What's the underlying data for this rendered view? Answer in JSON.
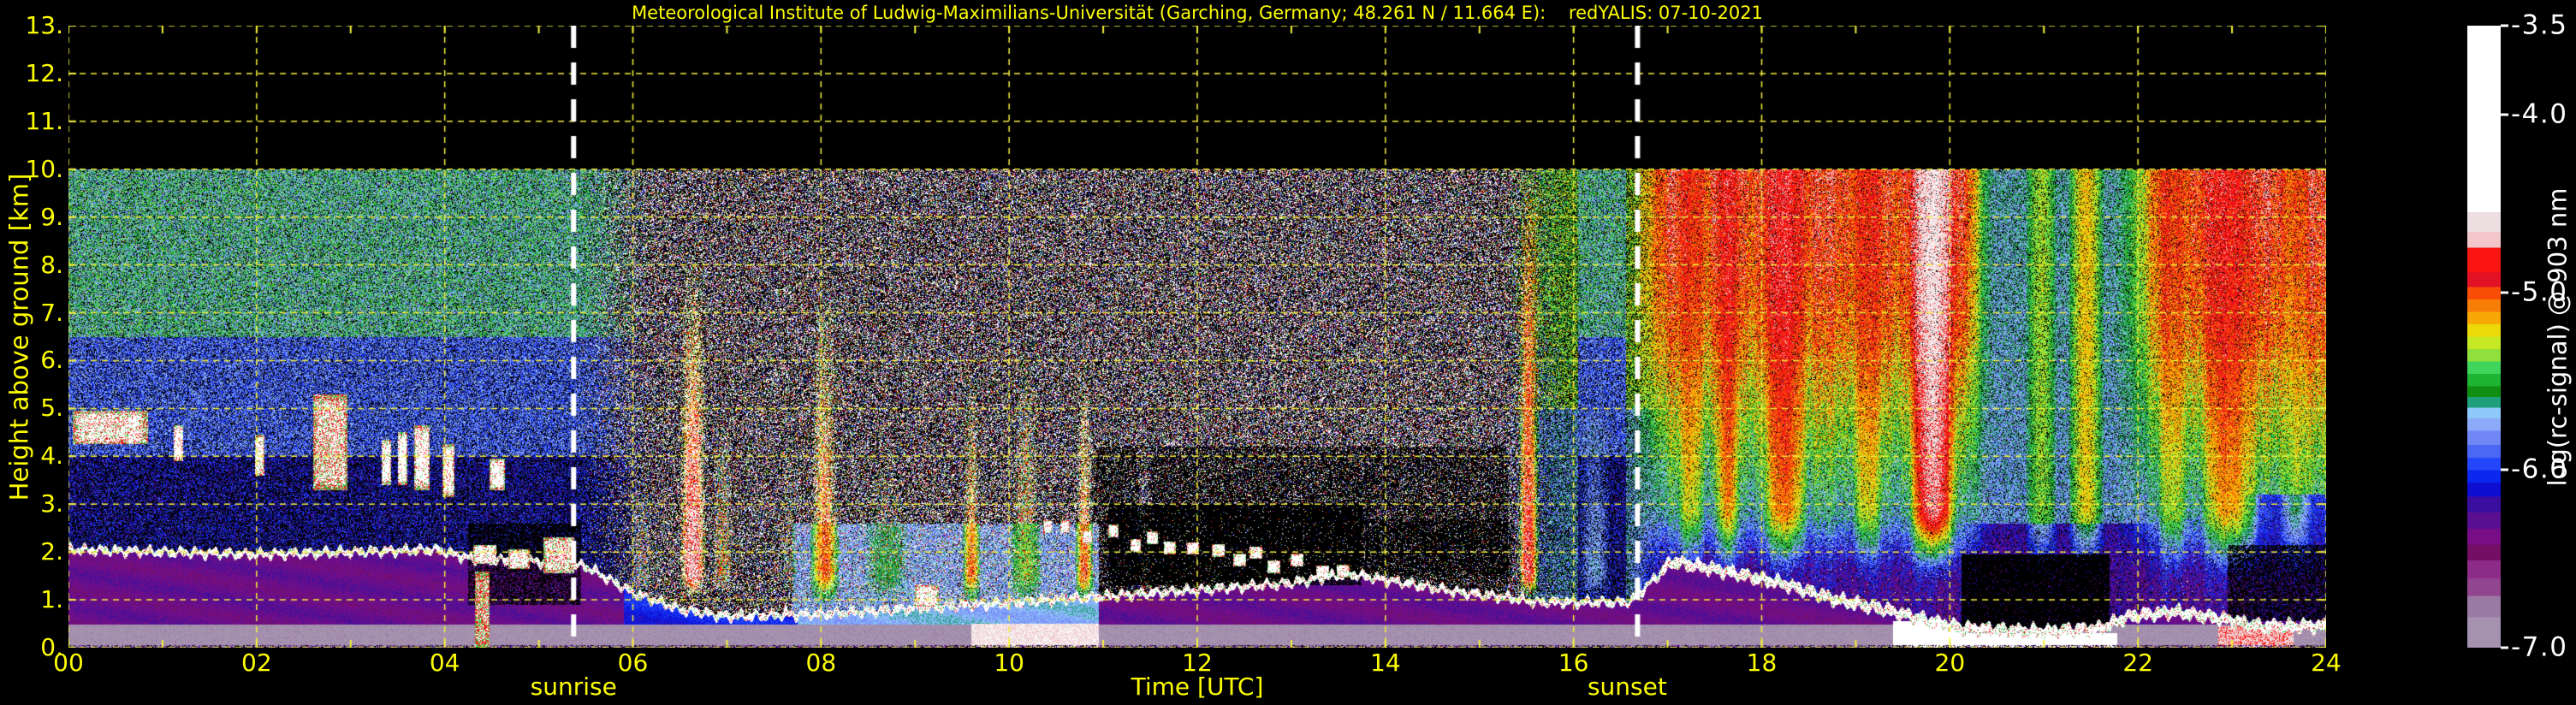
{
  "title": "Meteorological Institute of Ludwig-Maximilians-Universität (Garching, Germany; 48.261 N / 11.664 E):    redYALIS: 07-10-2021",
  "colors": {
    "background": "#000000",
    "axis_text": "#fdfd02",
    "grid": "#f5f23a",
    "annotation_line": "#ffffff",
    "colorbar_text": "#ffffff"
  },
  "chart_data": {
    "type": "heatmap",
    "title": "Meteorological Institute of Ludwig-Maximilians-Universität (Garching, Germany; 48.261 N / 11.664 E):    redYALIS: 07-10-2021",
    "xlabel": "Time [UTC]",
    "ylabel": "Height above ground [km]",
    "x_range": [
      0,
      24
    ],
    "y_range": [
      0,
      13
    ],
    "data_height_range_km": [
      0,
      10
    ],
    "grid": "dashed yellow, x every 2 h, y every 1 km",
    "x_ticks": [
      {
        "label": "00",
        "value": 0
      },
      {
        "label": "02",
        "value": 2
      },
      {
        "label": "04",
        "value": 4
      },
      {
        "label": "06",
        "value": 6
      },
      {
        "label": "08",
        "value": 8
      },
      {
        "label": "10",
        "value": 10
      },
      {
        "label": "12",
        "value": 12
      },
      {
        "label": "14",
        "value": 14
      },
      {
        "label": "16",
        "value": 16
      },
      {
        "label": "18",
        "value": 18
      },
      {
        "label": "20",
        "value": 20
      },
      {
        "label": "22",
        "value": 22
      },
      {
        "label": "24",
        "value": 24
      }
    ],
    "y_ticks": [
      {
        "label": "0.",
        "value": 0
      },
      {
        "label": "1.",
        "value": 1
      },
      {
        "label": "2.",
        "value": 2
      },
      {
        "label": "3.",
        "value": 3
      },
      {
        "label": "4.",
        "value": 4
      },
      {
        "label": "5.",
        "value": 5
      },
      {
        "label": "6.",
        "value": 6
      },
      {
        "label": "7.",
        "value": 7
      },
      {
        "label": "8.",
        "value": 8
      },
      {
        "label": "9.",
        "value": 9
      },
      {
        "label": "10.",
        "value": 10
      },
      {
        "label": "11.",
        "value": 11
      },
      {
        "label": "12.",
        "value": 12
      },
      {
        "label": "13.",
        "value": 13
      }
    ],
    "annotations": [
      {
        "label": "sunrise",
        "time_utc": 5.37
      },
      {
        "label": "sunset",
        "time_utc": 16.68
      }
    ],
    "colorbar": {
      "label": "log(rc-signal) @ 903 nm",
      "range": [
        -7.0,
        -3.5
      ],
      "ticks": [
        {
          "label": "-3.5",
          "value": -3.5
        },
        {
          "label": "-4.0",
          "value": -4.0
        },
        {
          "label": "-5.0",
          "value": -5.0
        },
        {
          "label": "-6.0",
          "value": -6.0
        },
        {
          "label": "-7.0",
          "value": -7.0
        }
      ]
    },
    "palette": [
      [
        -4.55,
        "#ffffff"
      ],
      [
        -4.66,
        "#eddfe1"
      ],
      [
        -4.75,
        "#f3c6ca"
      ],
      [
        -4.89,
        "#fb1410"
      ],
      [
        -4.97,
        "#e01223"
      ],
      [
        -5.04,
        "#f84d06"
      ],
      [
        -5.11,
        "#f87d06"
      ],
      [
        -5.18,
        "#f8a806"
      ],
      [
        -5.25,
        "#eed908"
      ],
      [
        -5.32,
        "#c6e822"
      ],
      [
        -5.39,
        "#8fe03a"
      ],
      [
        -5.46,
        "#3fd45c"
      ],
      [
        -5.53,
        "#1fb332"
      ],
      [
        -5.59,
        "#128f12"
      ],
      [
        -5.65,
        "#1f9f7a"
      ],
      [
        -5.71,
        "#8fc8fa"
      ],
      [
        -5.78,
        "#8babf8"
      ],
      [
        -5.86,
        "#7287f6"
      ],
      [
        -5.93,
        "#4a67f5"
      ],
      [
        -6.0,
        "#2446fa"
      ],
      [
        -6.07,
        "#0e27ee"
      ],
      [
        -6.15,
        "#0e0ed0"
      ],
      [
        -6.24,
        "#3a0e9e"
      ],
      [
        -6.33,
        "#5a0e90"
      ],
      [
        -6.42,
        "#770e86"
      ],
      [
        -6.51,
        "#720e64"
      ],
      [
        -6.61,
        "#8c2c86"
      ],
      [
        -6.71,
        "#91458e"
      ],
      [
        -6.83,
        "#9a7aa5"
      ],
      [
        -7.01,
        "#a492ae"
      ]
    ],
    "features": {
      "sunrise_t": 5.37,
      "sunset_t": 16.68,
      "ground_band_h": 0.48,
      "bl_top": [
        [
          0,
          2.05
        ],
        [
          1,
          2.0
        ],
        [
          2,
          1.95
        ],
        [
          3,
          2.0
        ],
        [
          3.9,
          2.05
        ],
        [
          4.3,
          1.85
        ],
        [
          5.0,
          1.8
        ],
        [
          5.5,
          1.7
        ],
        [
          6.0,
          1.15
        ],
        [
          6.5,
          0.8
        ],
        [
          7.0,
          0.65
        ],
        [
          8.0,
          0.7
        ],
        [
          9.0,
          0.82
        ],
        [
          9.7,
          0.9
        ],
        [
          10.5,
          1.0
        ],
        [
          11.2,
          1.1
        ],
        [
          12.0,
          1.2
        ],
        [
          13.0,
          1.35
        ],
        [
          13.6,
          1.55
        ],
        [
          14.2,
          1.35
        ],
        [
          14.8,
          1.15
        ],
        [
          15.3,
          1.05
        ],
        [
          15.6,
          0.95
        ],
        [
          16.6,
          0.95
        ],
        [
          17.05,
          1.8
        ],
        [
          17.6,
          1.6
        ],
        [
          18.2,
          1.35
        ],
        [
          18.8,
          1.0
        ],
        [
          19.3,
          0.8
        ],
        [
          19.8,
          0.55
        ],
        [
          20.15,
          0.4
        ],
        [
          21.0,
          0.33
        ],
        [
          21.6,
          0.4
        ],
        [
          21.9,
          0.65
        ],
        [
          22.4,
          0.75
        ],
        [
          22.9,
          0.6
        ],
        [
          23.3,
          0.45
        ],
        [
          24,
          0.45
        ]
      ],
      "night_profile": [
        [
          0,
          -6.35
        ],
        [
          1.6,
          -6.2
        ],
        [
          2.2,
          -5.95
        ],
        [
          2.8,
          -5.65
        ],
        [
          3.6,
          -5.5
        ],
        [
          5,
          -5.28
        ],
        [
          6.5,
          -5.05
        ],
        [
          8,
          -4.95
        ],
        [
          10,
          -4.9
        ]
      ],
      "clouds": [
        [
          0.05,
          0.85,
          4.25,
          4.95,
          0.35
        ],
        [
          1.12,
          1.22,
          3.9,
          4.65,
          0.15
        ],
        [
          1.98,
          2.08,
          3.6,
          4.45,
          0.2
        ],
        [
          2.6,
          2.97,
          3.3,
          5.3,
          0.55
        ],
        [
          3.33,
          3.43,
          3.4,
          4.35,
          0.15
        ],
        [
          3.5,
          3.6,
          3.4,
          4.5,
          0.15
        ],
        [
          3.68,
          3.84,
          3.3,
          4.65,
          0.2
        ],
        [
          3.98,
          4.1,
          3.15,
          4.25,
          0.25
        ],
        [
          4.48,
          4.64,
          3.3,
          3.95,
          0.2
        ],
        [
          4.3,
          4.55,
          1.75,
          2.15,
          0.2
        ],
        [
          4.68,
          4.9,
          1.65,
          2.05,
          0.25
        ],
        [
          5.05,
          5.38,
          1.55,
          2.3,
          0.45
        ],
        [
          4.32,
          4.48,
          0.0,
          1.6,
          0.8
        ],
        [
          9.0,
          9.25,
          0.85,
          1.3,
          0.2
        ]
      ],
      "cumulus": {
        "t0": 10.3,
        "t1": 13.6,
        "h_start": 2.55,
        "h_end": 1.55,
        "count": 15
      },
      "plumes": [
        [
          5.95,
          6.25,
          3.8,
          -5.45,
          0.6
        ],
        [
          6.48,
          6.8,
          8.5,
          -4.6,
          0.95
        ],
        [
          6.82,
          7.08,
          5.2,
          -5.3,
          0.7
        ],
        [
          7.55,
          7.75,
          5.5,
          -5.35,
          0.5
        ],
        [
          7.88,
          8.2,
          7.6,
          -4.8,
          0.85
        ],
        [
          8.45,
          8.95,
          4.3,
          -5.35,
          0.6
        ],
        [
          9.5,
          9.7,
          5.8,
          -4.75,
          0.8
        ],
        [
          10.0,
          10.35,
          6.6,
          -5.15,
          0.7
        ],
        [
          10.7,
          10.9,
          6.2,
          -4.7,
          0.8
        ],
        [
          11.35,
          11.52,
          4.5,
          -5.45,
          0.5
        ],
        [
          15.4,
          15.64,
          10,
          -4.65,
          0.9
        ],
        [
          16.05,
          16.4,
          5.0,
          -5.35,
          0.55
        ],
        [
          17.1,
          17.4,
          10,
          -4.95,
          0.55
        ],
        [
          17.5,
          17.78,
          10,
          -4.85,
          0.65
        ],
        [
          18.0,
          18.5,
          10,
          -4.8,
          0.7
        ],
        [
          18.95,
          19.3,
          10,
          -4.95,
          0.55
        ],
        [
          19.55,
          20.1,
          10,
          -4.55,
          0.85
        ],
        [
          20.8,
          21.15,
          10,
          -4.95,
          0.5
        ],
        [
          21.25,
          21.65,
          10,
          -4.85,
          0.6
        ],
        [
          22.2,
          22.55,
          10,
          -5.05,
          0.5
        ],
        [
          22.65,
          23.3,
          10,
          -4.85,
          0.65
        ],
        [
          23.5,
          23.85,
          10,
          -5.1,
          0.45
        ]
      ],
      "suppress": [
        [
          4.25,
          5.45,
          0.9,
          2.6,
          0.3
        ],
        [
          11.05,
          13.75,
          1.3,
          3.0,
          0.18
        ],
        [
          13.75,
          15.35,
          1.5,
          2.7,
          0.5
        ],
        [
          20.12,
          21.7,
          0.4,
          1.95,
          0.06
        ],
        [
          22.95,
          24.01,
          0.55,
          2.15,
          0.3
        ]
      ],
      "bl_fill_overrides": [
        [
          5.9,
          7.75,
          -6.05
        ],
        [
          7.75,
          10.95,
          -5.72
        ]
      ],
      "low_bands": [
        [
          9.6,
          10.95,
          -4.6,
          0.5
        ],
        [
          19.4,
          20.2,
          -3.8,
          0.55
        ],
        [
          20.2,
          21.78,
          -3.9,
          0.3
        ],
        [
          22.85,
          23.65,
          -4.7,
          0.45
        ]
      ]
    }
  }
}
